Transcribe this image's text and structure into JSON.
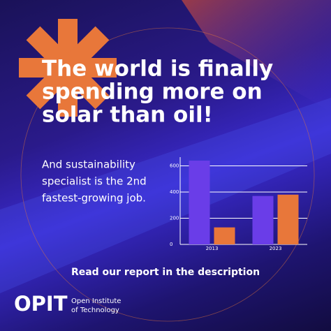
{
  "headline": [
    "The world is finally",
    "spending more on",
    "solar than oil!"
  ],
  "subtitle": [
    "And sustainability",
    "specialist is the 2nd",
    "fastest-growing job."
  ],
  "chart_data": {
    "type": "bar",
    "categories": [
      "2013",
      "2023"
    ],
    "series": [
      {
        "color": "#6a3de8",
        "values": [
          640,
          370
        ]
      },
      {
        "color": "#e8773a",
        "values": [
          130,
          380
        ]
      }
    ],
    "ylim": [
      0,
      640
    ],
    "yticks": [
      0,
      200,
      400,
      600
    ],
    "grid": true
  },
  "cta": "Read our report in the description",
  "logo": {
    "mark": "OPIT",
    "name": [
      "Open Institute",
      "of Technology"
    ]
  }
}
